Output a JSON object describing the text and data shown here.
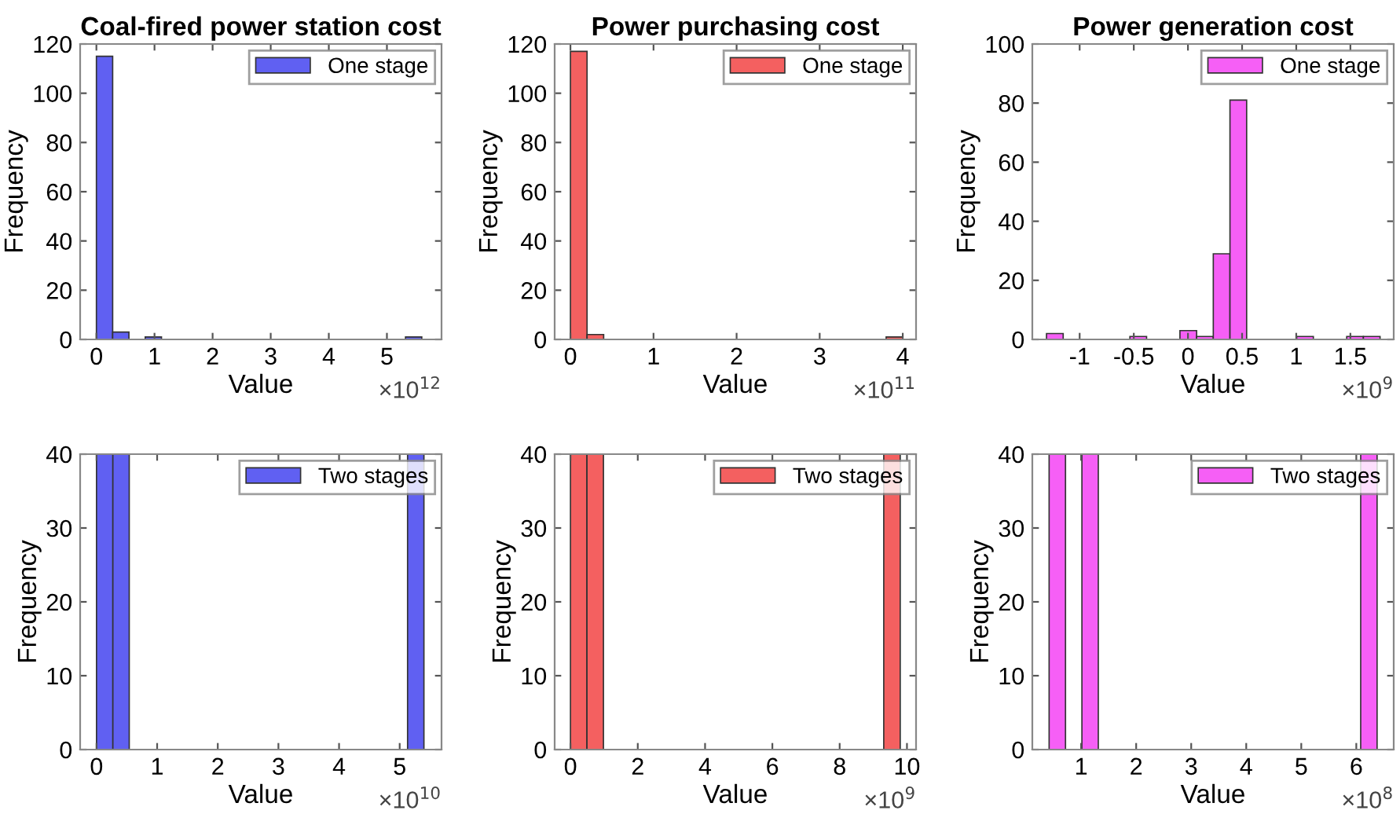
{
  "chart_data": [
    {
      "type": "histogram",
      "title": "Coal-fired power station cost",
      "xlabel": "Value",
      "ylabel": "Frequency",
      "annotations": [
        "×10$^{12}$"
      ],
      "bins": [
        0,
        0.28,
        0.56,
        0.84,
        1.12,
        1.4,
        1.68,
        1.96,
        2.24,
        2.52,
        2.8,
        3.08,
        3.36,
        3.64,
        3.92,
        4.2,
        4.48,
        4.76,
        5.04,
        5.32,
        5.6
      ],
      "series": [
        {
          "name": "One stage",
          "color": "#6060f2",
          "values": [
            115,
            3,
            0,
            1,
            0,
            0,
            0,
            0,
            0,
            0,
            0,
            0,
            0,
            0,
            0,
            0,
            0,
            0,
            0,
            1
          ]
        }
      ],
      "xlim": [
        -0.28,
        5.94
      ],
      "xticks": [
        0,
        1,
        2,
        3,
        4,
        5
      ],
      "ylim": [
        0,
        120
      ],
      "yticks": [
        0,
        20,
        40,
        60,
        80,
        100,
        120
      ],
      "legend": "top right",
      "grid": false
    },
    {
      "type": "histogram",
      "title": "Power purchasing cost",
      "xlabel": "Value",
      "ylabel": "Frequency",
      "annotations": [
        "×10$^{11}$"
      ],
      "bins": [
        0,
        0.2,
        0.4,
        0.6,
        0.8,
        1.0,
        1.2,
        1.4,
        1.6,
        1.8,
        2.0,
        2.2,
        2.4,
        2.6,
        2.8,
        3.0,
        3.2,
        3.4,
        3.6,
        3.8,
        4.0
      ],
      "series": [
        {
          "name": "One stage",
          "color": "#f46060",
          "values": [
            117,
            2,
            0,
            0,
            0,
            0,
            0,
            0,
            0,
            0,
            0,
            0,
            0,
            0,
            0,
            0,
            0,
            0,
            0,
            1
          ]
        }
      ],
      "xlim": [
        -0.19,
        4.16
      ],
      "xticks": [
        0,
        1,
        2,
        3,
        4
      ],
      "ylim": [
        0,
        120
      ],
      "yticks": [
        0,
        20,
        40,
        60,
        80,
        100,
        120
      ],
      "legend": "top right",
      "grid": false
    },
    {
      "type": "histogram",
      "title": "Power generation cost",
      "xlabel": "Value",
      "ylabel": "Frequency",
      "annotations": [
        "×10$^{9}$"
      ],
      "bins": [
        -1.306,
        -1.152,
        -0.998,
        -0.844,
        -0.69,
        -0.536,
        -0.382,
        -0.228,
        -0.074,
        0.08,
        0.234,
        0.388,
        0.542,
        0.696,
        0.85,
        1.004,
        1.158,
        1.312,
        1.466,
        1.62,
        1.774
      ],
      "series": [
        {
          "name": "One stage",
          "color": "#f65ff6",
          "values": [
            2,
            0,
            0,
            0,
            0,
            1,
            0,
            0,
            3,
            1,
            29,
            81,
            0,
            0,
            0,
            1,
            0,
            0,
            1,
            1
          ]
        }
      ],
      "xlim": [
        -1.437,
        1.9
      ],
      "xticks": [
        -1,
        -0.5,
        0,
        0.5,
        1,
        1.5
      ],
      "ylim": [
        0,
        100
      ],
      "yticks": [
        0,
        20,
        40,
        60,
        80,
        100
      ],
      "legend": "top right",
      "grid": false
    },
    {
      "type": "histogram",
      "xlabel": "Value",
      "ylabel": "Frequency",
      "annotations": [
        "×10$^{10}$"
      ],
      "bins": [
        0,
        0.27,
        0.54,
        0.81,
        1.08,
        1.35,
        1.62,
        1.89,
        2.16,
        2.43,
        2.7,
        2.97,
        3.24,
        3.51,
        3.78,
        4.05,
        4.32,
        4.59,
        4.86,
        5.13,
        5.4
      ],
      "series": [
        {
          "name": "Two stages",
          "color": "#6060f2",
          "values": [
            40,
            40,
            0,
            0,
            0,
            0,
            0,
            0,
            0,
            0,
            0,
            0,
            0,
            0,
            0,
            0,
            0,
            0,
            0,
            40
          ]
        }
      ],
      "xlim": [
        -0.27,
        5.69
      ],
      "xticks": [
        0,
        1,
        2,
        3,
        4,
        5
      ],
      "ylim": [
        0,
        40
      ],
      "yticks": [
        0,
        10,
        20,
        30,
        40
      ],
      "legend": "top right",
      "grid": false
    },
    {
      "type": "histogram",
      "xlabel": "Value",
      "ylabel": "Frequency",
      "annotations": [
        "×10$^{9}$"
      ],
      "bins": [
        0,
        0.49,
        0.98,
        1.47,
        1.96,
        2.45,
        2.94,
        3.43,
        3.92,
        4.41,
        4.9,
        5.39,
        5.88,
        6.37,
        6.86,
        7.35,
        7.84,
        8.33,
        8.82,
        9.31,
        9.8
      ],
      "series": [
        {
          "name": "Two stages",
          "color": "#f46060",
          "values": [
            40,
            40,
            0,
            0,
            0,
            0,
            0,
            0,
            0,
            0,
            0,
            0,
            0,
            0,
            0,
            0,
            0,
            0,
            0,
            40
          ]
        }
      ],
      "xlim": [
        -0.47,
        10.27
      ],
      "xticks": [
        0,
        2,
        4,
        6,
        8,
        10
      ],
      "ylim": [
        0,
        40
      ],
      "yticks": [
        0,
        10,
        20,
        30,
        40
      ],
      "legend": "top right",
      "grid": false
    },
    {
      "type": "histogram",
      "xlabel": "Value",
      "ylabel": "Frequency",
      "annotations": [
        "×10$^{8}$"
      ],
      "bins": [
        0.418,
        0.716,
        1.014,
        1.312,
        1.61,
        1.908,
        2.206,
        2.504,
        2.802,
        3.1,
        3.398,
        3.696,
        3.994,
        4.292,
        4.59,
        4.888,
        5.186,
        5.484,
        5.782,
        6.08,
        6.378
      ],
      "series": [
        {
          "name": "Two stages",
          "color": "#f65ff6",
          "values": [
            40,
            0,
            40,
            0,
            0,
            0,
            0,
            0,
            0,
            0,
            0,
            0,
            0,
            0,
            0,
            0,
            0,
            0,
            0,
            40
          ]
        }
      ],
      "xlim": [
        0.113,
        6.68
      ],
      "xticks": [
        1,
        2,
        3,
        4,
        5,
        6
      ],
      "ylim": [
        0,
        40
      ],
      "yticks": [
        0,
        10,
        20,
        30,
        40
      ],
      "legend": "top right",
      "grid": false
    }
  ]
}
